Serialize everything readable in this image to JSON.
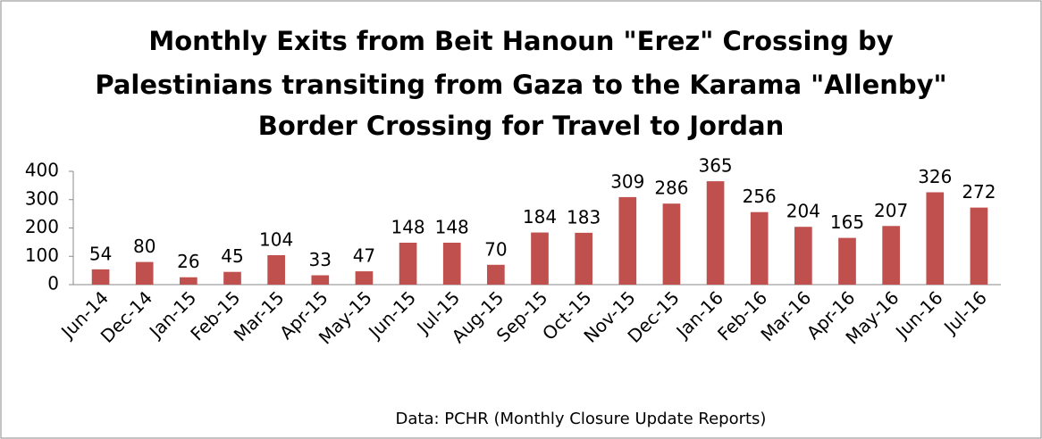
{
  "chart_data": {
    "type": "bar",
    "title": [
      "Monthly Exits from Beit Hanoun \"Erez\" Crossing by",
      "Palestinians transiting from Gaza to the Karama \"Allenby\"",
      "Border Crossing for Travel to Jordan"
    ],
    "source": "Data: PCHR (Monthly Closure Update Reports)",
    "categories": [
      "Jun-14",
      "Dec-14",
      "Jan-15",
      "Feb-15",
      "Mar-15",
      "Apr-15",
      "May-15",
      "Jun-15",
      "Jul-15",
      "Aug-15",
      "Sep-15",
      "Oct-15",
      "Nov-15",
      "Dec-15",
      "Jan-16",
      "Feb-16",
      "Mar-16",
      "Apr-16",
      "May-16",
      "Jun-16",
      "Jul-16"
    ],
    "values": [
      54,
      80,
      26,
      45,
      104,
      33,
      47,
      148,
      148,
      70,
      184,
      183,
      309,
      286,
      365,
      256,
      204,
      165,
      207,
      326,
      272
    ],
    "color": "#c0504d",
    "ylim": [
      0,
      400
    ],
    "yticks": [
      0,
      100,
      200,
      300,
      400
    ],
    "grid": false
  }
}
